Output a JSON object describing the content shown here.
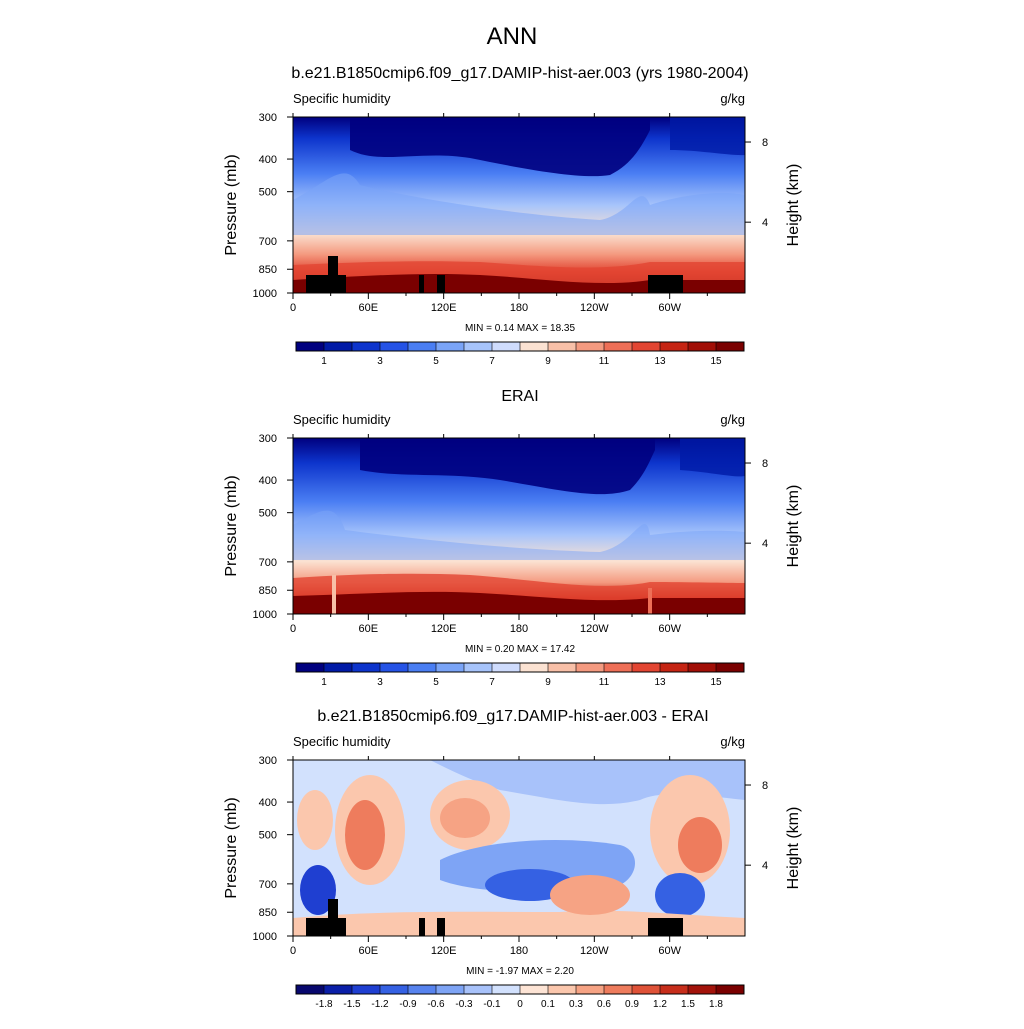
{
  "figure": {
    "title": "ANN"
  },
  "chart_data": [
    {
      "type": "heatmap",
      "title": "b.e21.B1850cmip6.f09_g17.DAMIP-hist-aer.003 (yrs 1980-2004)",
      "left_label": "Specific humidity",
      "right_label": "g/kg",
      "ylabel": "Pressure (mb)",
      "ylabel_right": "Height (km)",
      "x_ticks": [
        "0",
        "60E",
        "120E",
        "180",
        "120W",
        "60W"
      ],
      "x_range": [
        0,
        360
      ],
      "y_ticks": [
        "300",
        "400",
        "500",
        "700",
        "850",
        "1000"
      ],
      "y_range": [
        300,
        1000
      ],
      "height_ticks": [
        "8",
        "4"
      ],
      "stats": "MIN =   0.14  MAX =  18.35",
      "min": 0.14,
      "max": 18.35,
      "colorbar_labels": [
        "1",
        "3",
        "5",
        "7",
        "9",
        "11",
        "13",
        "15"
      ],
      "colorbar_levels": [
        1,
        3,
        5,
        7,
        9,
        11,
        13,
        15
      ],
      "colors": [
        "#00007f",
        "#001aa6",
        "#0d34cc",
        "#2553e6",
        "#4a7ef3",
        "#7aa4f7",
        "#a7c4fb",
        "#cfdcfd",
        "#fbe2d2",
        "#f8c0a8",
        "#f49a80",
        "#ee6f57",
        "#e24532",
        "#c52413",
        "#a10e06",
        "#7a0000"
      ]
    },
    {
      "type": "heatmap",
      "title": "ERAI",
      "left_label": "Specific humidity",
      "right_label": "g/kg",
      "ylabel": "Pressure (mb)",
      "ylabel_right": "Height (km)",
      "x_ticks": [
        "0",
        "60E",
        "120E",
        "180",
        "120W",
        "60W"
      ],
      "x_range": [
        0,
        360
      ],
      "y_ticks": [
        "300",
        "400",
        "500",
        "700",
        "850",
        "1000"
      ],
      "y_range": [
        300,
        1000
      ],
      "height_ticks": [
        "8",
        "4"
      ],
      "stats": "MIN =   0.20  MAX =  17.42",
      "min": 0.2,
      "max": 17.42,
      "colorbar_labels": [
        "1",
        "3",
        "5",
        "7",
        "9",
        "11",
        "13",
        "15"
      ],
      "colorbar_levels": [
        1,
        3,
        5,
        7,
        9,
        11,
        13,
        15
      ],
      "colors": [
        "#00007f",
        "#001aa6",
        "#0d34cc",
        "#2553e6",
        "#4a7ef3",
        "#7aa4f7",
        "#a7c4fb",
        "#cfdcfd",
        "#fbe2d2",
        "#f8c0a8",
        "#f49a80",
        "#ee6f57",
        "#e24532",
        "#c52413",
        "#a10e06",
        "#7a0000"
      ]
    },
    {
      "type": "heatmap",
      "title": "b.e21.B1850cmip6.f09_g17.DAMIP-hist-aer.003 - ERAI",
      "left_label": "Specific humidity",
      "right_label": "g/kg",
      "ylabel": "Pressure (mb)",
      "ylabel_right": "Height (km)",
      "x_ticks": [
        "0",
        "60E",
        "120E",
        "180",
        "120W",
        "60W"
      ],
      "x_range": [
        0,
        360
      ],
      "y_ticks": [
        "300",
        "400",
        "500",
        "700",
        "850",
        "1000"
      ],
      "y_range": [
        300,
        1000
      ],
      "height_ticks": [
        "8",
        "4"
      ],
      "stats": "MIN =  -1.97  MAX =   2.20",
      "min": -1.97,
      "max": 2.2,
      "colorbar_labels": [
        "-1.8",
        "-1.5",
        "-1.2",
        "-0.9",
        "-0.6",
        "-0.3",
        "-0.1",
        "0",
        "0.1",
        "0.3",
        "0.6",
        "0.9",
        "1.2",
        "1.5",
        "1.8"
      ],
      "colorbar_levels": [
        -1.8,
        -1.5,
        -1.2,
        -0.9,
        -0.6,
        -0.3,
        -0.1,
        0,
        0.1,
        0.3,
        0.6,
        0.9,
        1.2,
        1.5,
        1.8
      ],
      "colors": [
        "#08086e",
        "#0b1fa8",
        "#1f3fd1",
        "#3561e3",
        "#5783ee",
        "#7ea4f5",
        "#a8c2fa",
        "#d2e1fd",
        "#fde4d5",
        "#fbc7ad",
        "#f6a384",
        "#ee7c5d",
        "#df5238",
        "#c72e1b",
        "#a3130b",
        "#7a0000"
      ]
    }
  ]
}
